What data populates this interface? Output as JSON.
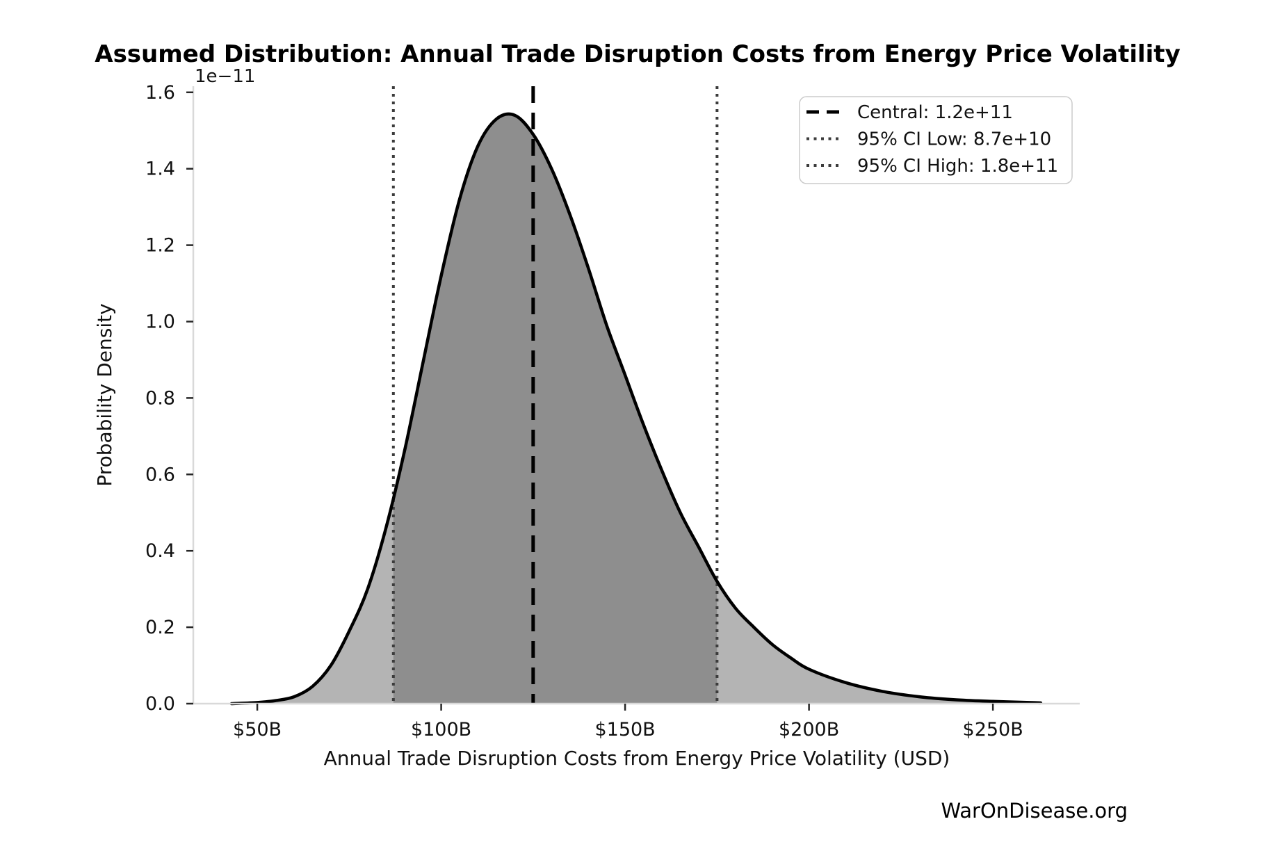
{
  "title": "Assumed Distribution: Annual Trade Disruption Costs from Energy Price Volatility",
  "footer": "WarOnDisease.org",
  "chart_data": {
    "type": "area",
    "title": "Assumed Distribution: Annual Trade Disruption Costs from Energy Price Volatility",
    "xlabel": "Annual Trade Disruption Costs from Energy Price Volatility (USD)",
    "ylabel": "Probability Density",
    "y_offset_label": "1e−11",
    "grid": false,
    "legend_position": "upper right",
    "x_tick_values_b": [
      50,
      100,
      150,
      200,
      250
    ],
    "x_tick_labels": [
      "$50B",
      "$100B",
      "$150B",
      "$200B",
      "$250B"
    ],
    "y_tick_values": [
      0.0,
      0.2,
      0.4,
      0.6,
      0.8,
      1.0,
      1.2,
      1.4,
      1.6
    ],
    "y_tick_labels": [
      "0.0",
      "0.2",
      "0.4",
      "0.6",
      "0.8",
      "1.0",
      "1.2",
      "1.4",
      "1.6"
    ],
    "xlim_b": [
      32.6,
      273.6
    ],
    "ylim_e11": [
      0,
      1.616
    ],
    "curve": {
      "x_b": [
        43,
        50,
        55,
        60,
        65,
        70,
        75,
        80,
        85,
        90,
        95,
        100,
        105,
        110,
        115,
        120,
        125,
        130,
        135,
        140,
        145,
        150,
        155,
        160,
        165,
        170,
        175,
        180,
        185,
        190,
        195,
        200,
        210,
        220,
        230,
        240,
        250,
        260,
        263
      ],
      "density_e11": [
        0.0,
        0.003,
        0.008,
        0.018,
        0.045,
        0.1,
        0.19,
        0.3,
        0.46,
        0.66,
        0.89,
        1.12,
        1.32,
        1.46,
        1.53,
        1.54,
        1.49,
        1.4,
        1.28,
        1.14,
        0.99,
        0.86,
        0.73,
        0.61,
        0.5,
        0.41,
        0.32,
        0.25,
        0.2,
        0.155,
        0.12,
        0.09,
        0.055,
        0.032,
        0.018,
        0.01,
        0.006,
        0.003,
        0.002
      ]
    },
    "markers": {
      "central_b": 125,
      "ci_low_b": 87,
      "ci_high_b": 175
    },
    "legend": [
      {
        "label": "Central: 1.2e+11",
        "style": "dashed"
      },
      {
        "label": "95% CI Low: 8.7e+10",
        "style": "dotted"
      },
      {
        "label": "95% CI High: 1.8e+11",
        "style": "dotted"
      }
    ]
  },
  "colors": {
    "curve": "#000000",
    "fill_light": "#b4b4b4",
    "fill_dark": "#8e8e8e",
    "vline_central": "#000000",
    "vline_ci": "#3c3c3c",
    "axis_spine": "#d9d9d9",
    "tick_mark": "#262626",
    "text": "#111111",
    "footer_text": "#4d4d4d",
    "legend_border": "#cccccc"
  }
}
